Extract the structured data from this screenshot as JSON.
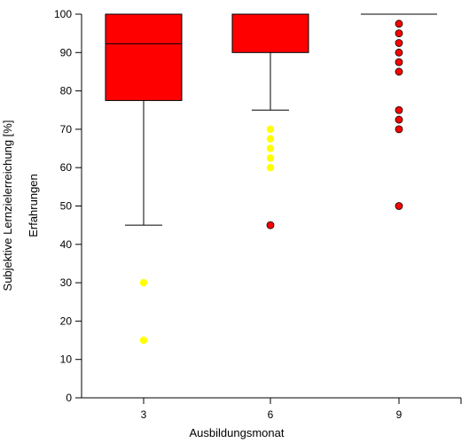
{
  "chart_data": {
    "type": "box",
    "xlabel": "Ausbildungsmonat",
    "ylabel": "Subjektive Lernzielerreichung [%]",
    "ylabel2": "Erfahrungen",
    "ylim": [
      0,
      100
    ],
    "yticks": [
      0,
      10,
      20,
      30,
      40,
      50,
      60,
      70,
      80,
      90,
      100
    ],
    "categories": [
      "3",
      "6",
      "9"
    ],
    "grid": false,
    "colors": {
      "box": "#ff0000",
      "outlier_yellow": "#ffff00",
      "outlier_red": "#ff0000",
      "line": "#000000"
    },
    "boxes": [
      {
        "category": "3",
        "whisker_low": 45,
        "q1": 77.5,
        "median": 92.3,
        "q3": 100,
        "whisker_high": 100,
        "outliers": [
          {
            "value": 30,
            "kind": "yellow"
          },
          {
            "value": 15,
            "kind": "yellow"
          }
        ]
      },
      {
        "category": "6",
        "whisker_low": 75,
        "q1": 90,
        "median": 100,
        "q3": 100,
        "whisker_high": 100,
        "outliers": [
          {
            "value": 70,
            "kind": "yellow"
          },
          {
            "value": 67.5,
            "kind": "yellow"
          },
          {
            "value": 65,
            "kind": "yellow"
          },
          {
            "value": 62.5,
            "kind": "yellow"
          },
          {
            "value": 60,
            "kind": "yellow"
          },
          {
            "value": 45,
            "kind": "red"
          }
        ]
      },
      {
        "category": "9",
        "whisker_low": 100,
        "q1": 100,
        "median": 100,
        "q3": 100,
        "whisker_high": 100,
        "outliers": [
          {
            "value": 97.5,
            "kind": "red"
          },
          {
            "value": 95,
            "kind": "red"
          },
          {
            "value": 92.5,
            "kind": "red"
          },
          {
            "value": 90,
            "kind": "red"
          },
          {
            "value": 87.5,
            "kind": "red"
          },
          {
            "value": 85,
            "kind": "red"
          },
          {
            "value": 75,
            "kind": "red"
          },
          {
            "value": 72.5,
            "kind": "red"
          },
          {
            "value": 70,
            "kind": "red"
          },
          {
            "value": 50,
            "kind": "red"
          }
        ]
      }
    ]
  }
}
